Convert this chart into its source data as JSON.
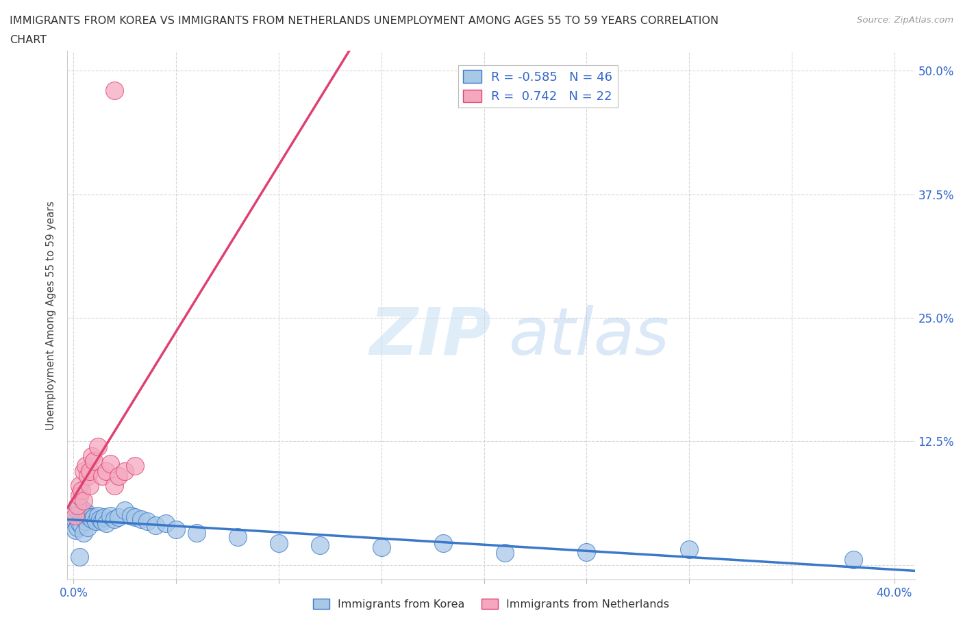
{
  "title_line1": "IMMIGRANTS FROM KOREA VS IMMIGRANTS FROM NETHERLANDS UNEMPLOYMENT AMONG AGES 55 TO 59 YEARS CORRELATION",
  "title_line2": "CHART",
  "source": "Source: ZipAtlas.com",
  "ylabel": "Unemployment Among Ages 55 to 59 years",
  "korea_R": -0.585,
  "korea_N": 46,
  "netherlands_R": 0.742,
  "netherlands_N": 22,
  "xlim": [
    -0.003,
    0.41
  ],
  "ylim": [
    -0.015,
    0.52
  ],
  "background_color": "#ffffff",
  "grid_color": "#cccccc",
  "korea_color": "#a8c8e8",
  "netherlands_color": "#f4a8c0",
  "korea_line_color": "#3a78c9",
  "netherlands_line_color": "#e04070",
  "korea_x": [
    0.001,
    0.001,
    0.002,
    0.002,
    0.003,
    0.003,
    0.004,
    0.004,
    0.005,
    0.005,
    0.005,
    0.006,
    0.006,
    0.007,
    0.007,
    0.008,
    0.009,
    0.01,
    0.011,
    0.012,
    0.013,
    0.014,
    0.015,
    0.016,
    0.018,
    0.02,
    0.022,
    0.025,
    0.028,
    0.03,
    0.033,
    0.036,
    0.04,
    0.045,
    0.05,
    0.06,
    0.08,
    0.1,
    0.12,
    0.15,
    0.18,
    0.21,
    0.25,
    0.3,
    0.38,
    0.003
  ],
  "korea_y": [
    0.045,
    0.035,
    0.055,
    0.038,
    0.06,
    0.042,
    0.05,
    0.04,
    0.055,
    0.032,
    0.048,
    0.044,
    0.05,
    0.038,
    0.052,
    0.048,
    0.046,
    0.048,
    0.044,
    0.05,
    0.046,
    0.044,
    0.048,
    0.042,
    0.05,
    0.046,
    0.048,
    0.055,
    0.05,
    0.048,
    0.046,
    0.044,
    0.04,
    0.042,
    0.036,
    0.032,
    0.028,
    0.022,
    0.02,
    0.018,
    0.022,
    0.012,
    0.013,
    0.016,
    0.005,
    0.008
  ],
  "neth_x": [
    0.001,
    0.002,
    0.003,
    0.003,
    0.004,
    0.005,
    0.005,
    0.006,
    0.007,
    0.008,
    0.008,
    0.009,
    0.01,
    0.012,
    0.014,
    0.016,
    0.018,
    0.02,
    0.022,
    0.025,
    0.03,
    0.02
  ],
  "neth_y": [
    0.05,
    0.06,
    0.08,
    0.07,
    0.075,
    0.065,
    0.095,
    0.1,
    0.09,
    0.08,
    0.095,
    0.11,
    0.105,
    0.12,
    0.09,
    0.095,
    0.102,
    0.08,
    0.09,
    0.095,
    0.1,
    0.48
  ]
}
